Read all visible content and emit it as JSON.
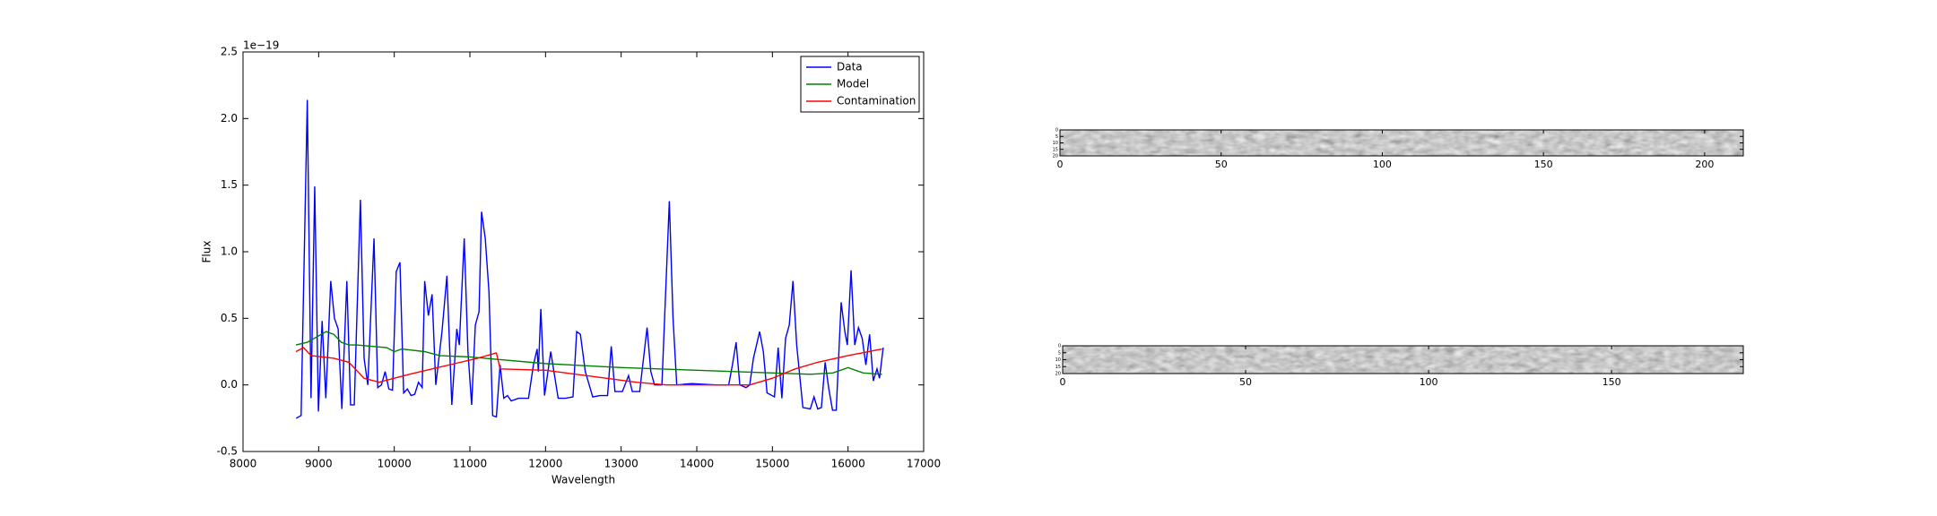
{
  "chart_data": [
    {
      "type": "line",
      "ylabel": "Flux",
      "xlabel": "Wavelength",
      "offset_label": "1e−19",
      "xlim": [
        8000,
        17000
      ],
      "xticks": [
        8000,
        9000,
        10000,
        11000,
        12000,
        13000,
        14000,
        15000,
        16000,
        17000
      ],
      "ylim": [
        -0.5,
        2.5
      ],
      "yticks": [
        -0.5,
        {
          "value": 0,
          "label": "0.0"
        },
        0.5,
        {
          "value": 1,
          "label": "1.0"
        },
        1.5,
        {
          "value": 2,
          "label": "2.0"
        },
        2.5
      ],
      "legend": "upper right",
      "series": [
        {
          "name": "Data",
          "color": "#0000ff",
          "x": [
            8703,
            8768,
            8850,
            8899,
            8948,
            8997,
            9046,
            9095,
            9160,
            9209,
            9258,
            9307,
            9373,
            9422,
            9471,
            9552,
            9601,
            9650,
            9732,
            9781,
            9830,
            9879,
            9928,
            9977,
            10026,
            10075,
            10124,
            10173,
            10222,
            10271,
            10320,
            10369,
            10402,
            10451,
            10500,
            10549,
            10631,
            10696,
            10761,
            10827,
            10860,
            10925,
            10974,
            11023,
            11072,
            11121,
            11154,
            11203,
            11252,
            11301,
            11350,
            11399,
            11448,
            11497,
            11546,
            11644,
            11775,
            11840,
            11889,
            11905,
            11938,
            11987,
            12069,
            12167,
            12265,
            12363,
            12412,
            12461,
            12526,
            12624,
            12722,
            12820,
            12869,
            12918,
            13016,
            13098,
            13147,
            13245,
            13343,
            13392,
            13441,
            13539,
            13637,
            13686,
            13735,
            13931,
            14258,
            14422,
            14471,
            14520,
            14569,
            14651,
            14700,
            14749,
            14831,
            14880,
            14929,
            15027,
            15076,
            15125,
            15174,
            15223,
            15272,
            15321,
            15403,
            15501,
            15550,
            15599,
            15648,
            15697,
            15746,
            15795,
            15844,
            15909,
            15958,
            15991,
            16040,
            16089,
            16138,
            16187,
            16236,
            16285,
            16334,
            16383,
            16416,
            16465
          ],
          "values": [
            -0.25,
            -0.23,
            2.14,
            -0.1,
            1.49,
            -0.2,
            0.48,
            -0.1,
            0.78,
            0.5,
            0.42,
            -0.18,
            0.78,
            -0.15,
            -0.15,
            1.39,
            0.2,
            0.0,
            1.1,
            -0.02,
            0.0,
            0.1,
            -0.03,
            -0.04,
            0.85,
            0.92,
            -0.06,
            -0.03,
            -0.08,
            -0.07,
            0.02,
            -0.02,
            0.78,
            0.52,
            0.68,
            0.0,
            0.4,
            0.82,
            -0.15,
            0.42,
            0.3,
            1.1,
            0.25,
            -0.15,
            0.45,
            0.55,
            1.3,
            1.1,
            0.7,
            -0.23,
            -0.24,
            0.15,
            -0.1,
            -0.08,
            -0.12,
            -0.1,
            -0.1,
            0.15,
            0.27,
            0.1,
            0.57,
            -0.08,
            0.25,
            -0.1,
            -0.1,
            -0.09,
            0.4,
            0.38,
            0.1,
            -0.09,
            -0.08,
            -0.08,
            0.29,
            -0.05,
            -0.05,
            0.07,
            -0.05,
            -0.05,
            0.43,
            0.1,
            0.0,
            0.0,
            1.38,
            0.5,
            0.0,
            0.01,
            0.0,
            0.0,
            0.15,
            0.32,
            0.0,
            -0.02,
            0.0,
            0.2,
            0.4,
            0.25,
            -0.06,
            -0.09,
            0.28,
            -0.1,
            0.35,
            0.45,
            0.78,
            0.3,
            -0.17,
            -0.18,
            -0.09,
            -0.18,
            -0.17,
            0.17,
            -0.03,
            -0.19,
            -0.19,
            0.62,
            0.4,
            0.3,
            0.86,
            0.3,
            0.43,
            0.35,
            0.15,
            0.38,
            0.03,
            0.12,
            0.05,
            0.28
          ]
        },
        {
          "name": "Model",
          "color": "#008000",
          "x": [
            8700,
            8850,
            9100,
            9200,
            9300,
            9400,
            9500,
            9700,
            9900,
            10000,
            10100,
            10400,
            10600,
            11000,
            11400,
            12000,
            13000,
            14000,
            15000,
            15500,
            15800,
            16000,
            16200,
            16450
          ],
          "values": [
            0.3,
            0.32,
            0.4,
            0.38,
            0.32,
            0.3,
            0.3,
            0.29,
            0.28,
            0.25,
            0.27,
            0.25,
            0.22,
            0.21,
            0.19,
            0.16,
            0.13,
            0.11,
            0.09,
            0.08,
            0.09,
            0.13,
            0.09,
            0.08
          ]
        },
        {
          "name": "Contamination",
          "color": "#ff0000",
          "x": [
            8700,
            8800,
            8900,
            9200,
            9400,
            9600,
            9800,
            10000,
            10200,
            10500,
            10800,
            11100,
            11350,
            11400,
            12000,
            12800,
            13200,
            13600,
            14200,
            14700,
            15000,
            15300,
            15600,
            16000,
            16450
          ],
          "values": [
            0.25,
            0.28,
            0.22,
            0.2,
            0.17,
            0.05,
            0.02,
            0.05,
            0.08,
            0.12,
            0.16,
            0.2,
            0.24,
            0.12,
            0.11,
            0.05,
            0.02,
            0.0,
            0.0,
            0.0,
            0.05,
            0.12,
            0.17,
            0.22,
            0.27
          ]
        }
      ]
    },
    {
      "type": "image",
      "xlim": [
        0,
        212
      ],
      "xticks": [
        0,
        50,
        100,
        150,
        200
      ],
      "ylim": [
        0,
        20
      ],
      "yticks": [
        0,
        5,
        10,
        15,
        20
      ]
    },
    {
      "type": "image",
      "xlim": [
        0,
        186
      ],
      "xticks": [
        0,
        50,
        100,
        150
      ],
      "ylim": [
        0,
        20
      ],
      "yticks": [
        0,
        5,
        10,
        15,
        20
      ]
    }
  ]
}
